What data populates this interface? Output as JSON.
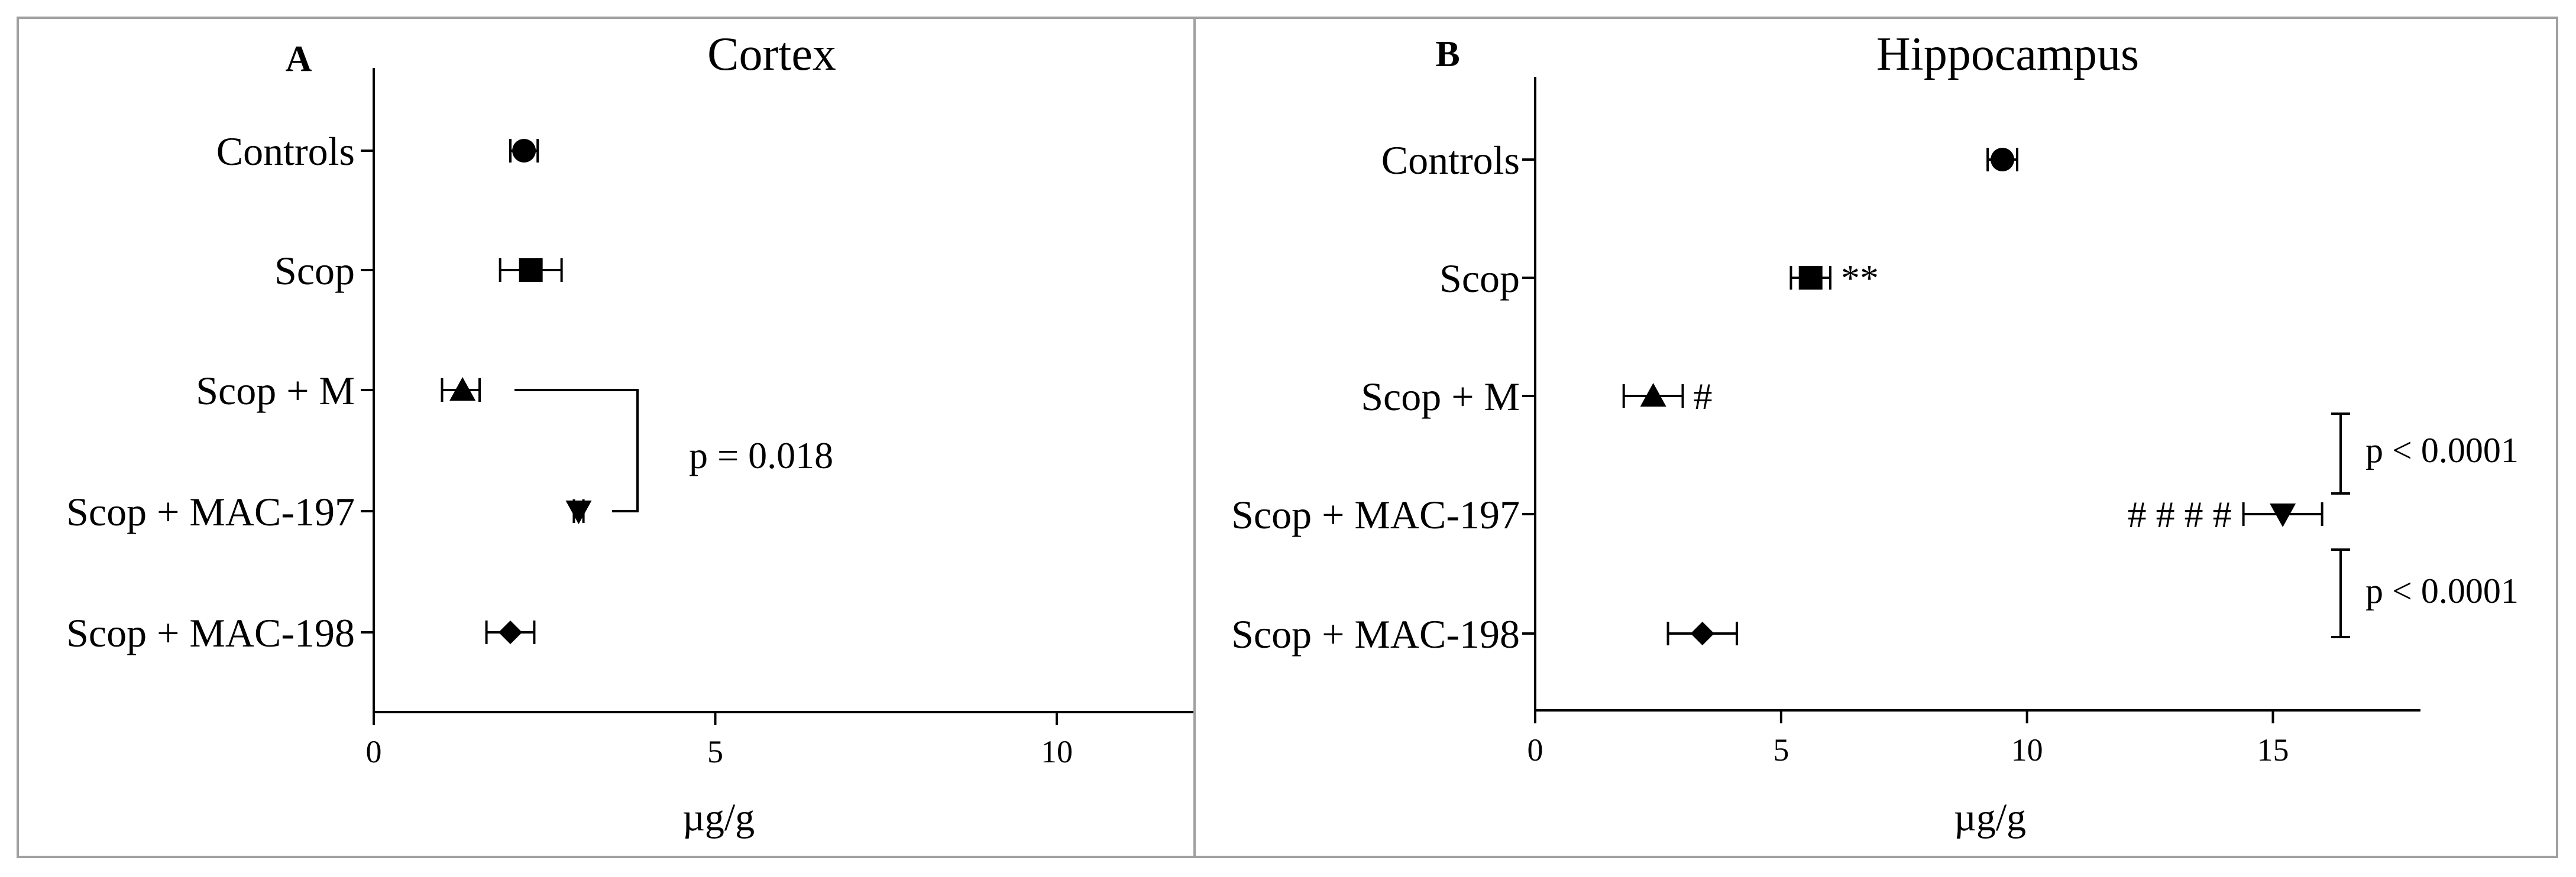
{
  "chart_data": [
    {
      "panel_label": "A",
      "type": "scatter",
      "title": "Cortex",
      "xlabel": "µg/g",
      "xlim": [
        0,
        12
      ],
      "xticks": [
        0,
        5,
        10
      ],
      "categories": [
        "Controls",
        "Scop",
        "Scop + M",
        "Scop + MAC-197",
        "Scop + MAC-198"
      ],
      "points": [
        {
          "category": "Controls",
          "value": 2.2,
          "err_low": 2.0,
          "err_high": 2.4,
          "marker": "circle"
        },
        {
          "category": "Scop",
          "value": 2.3,
          "err_low": 1.85,
          "err_high": 2.75,
          "marker": "square"
        },
        {
          "category": "Scop + M",
          "value": 1.3,
          "err_low": 1.0,
          "err_high": 1.55,
          "marker": "triangle-up"
        },
        {
          "category": "Scop + MAC-197",
          "value": 3.0,
          "err_low": 2.93,
          "err_high": 3.07,
          "marker": "triangle-down"
        },
        {
          "category": "Scop + MAC-198",
          "value": 2.0,
          "err_low": 1.65,
          "err_high": 2.35,
          "marker": "diamond"
        }
      ],
      "annotations": [
        {
          "text": "p = 0.018",
          "between": [
            "Scop + M",
            "Scop + MAC-197"
          ]
        }
      ],
      "grid": false
    },
    {
      "panel_label": "B",
      "type": "scatter",
      "title": "Hippocampus",
      "xlabel": "µg/g",
      "xlim": [
        0,
        18
      ],
      "xticks": [
        0,
        5,
        10,
        15
      ],
      "categories": [
        "Controls",
        "Scop",
        "Scop + M",
        "Scop + MAC-197",
        "Scop + MAC-198"
      ],
      "points": [
        {
          "category": "Controls",
          "value": 9.5,
          "err_low": 9.2,
          "err_high": 9.8,
          "marker": "circle",
          "sig": ""
        },
        {
          "category": "Scop",
          "value": 5.6,
          "err_low": 5.2,
          "err_high": 6.0,
          "marker": "square",
          "sig": "**"
        },
        {
          "category": "Scop + M",
          "value": 2.4,
          "err_low": 1.8,
          "err_high": 3.0,
          "marker": "triangle-up",
          "sig": "#"
        },
        {
          "category": "Scop + MAC-197",
          "value": 15.2,
          "err_low": 14.4,
          "err_high": 16.0,
          "marker": "triangle-down",
          "sig": "# # # #"
        },
        {
          "category": "Scop + MAC-198",
          "value": 3.4,
          "err_low": 2.7,
          "err_high": 4.1,
          "marker": "diamond",
          "sig": ""
        }
      ],
      "annotations": [
        {
          "text": "p < 0.0001",
          "between": [
            "Scop + M",
            "Scop + MAC-197"
          ]
        },
        {
          "text": "p < 0.0001",
          "between": [
            "Scop + MAC-197",
            "Scop + MAC-198"
          ]
        }
      ],
      "grid": false
    }
  ]
}
